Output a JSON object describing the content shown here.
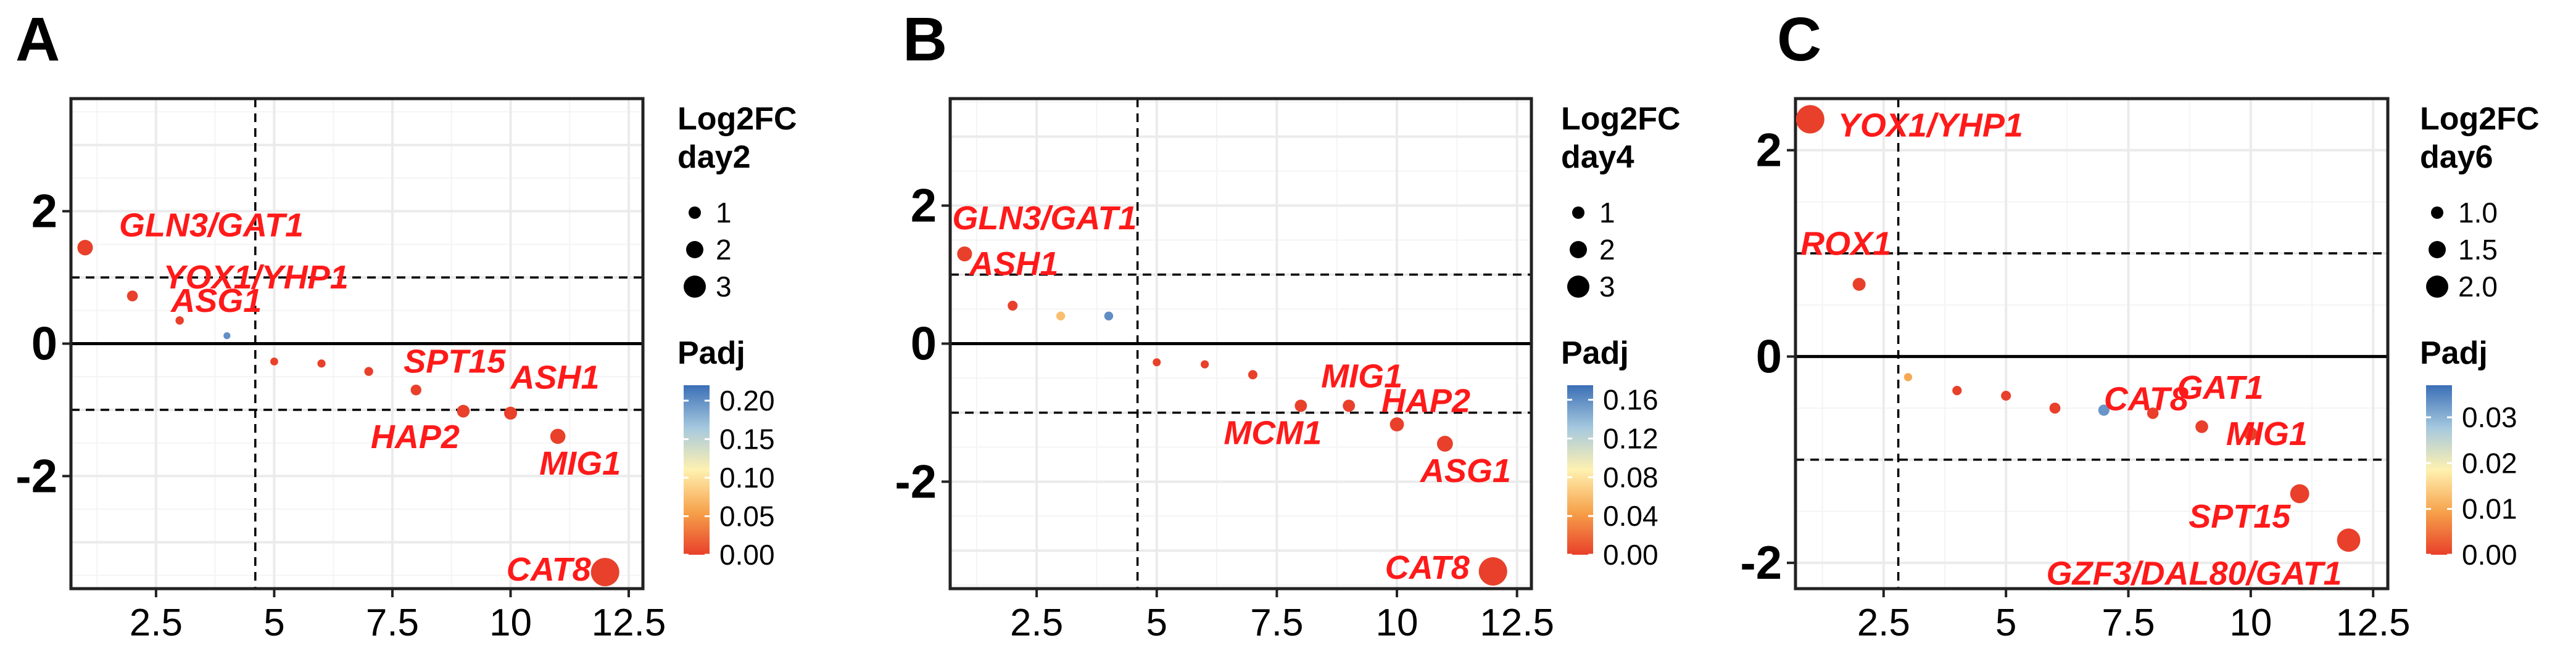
{
  "chart_data": [
    {
      "type": "scatter",
      "panel": "A",
      "xlim": [
        0.7,
        12.8
      ],
      "ylim": [
        -3.7,
        3.7
      ],
      "xticks": [
        "2.5",
        "5",
        "7.5",
        "10",
        "12.5"
      ],
      "yticks": [
        "2",
        "0",
        "-2"
      ],
      "cutoffs": {
        "vline_x": 4.6,
        "hline_y": [
          1.0,
          -1.0
        ]
      },
      "size_legend": {
        "title": [
          "Log2FC",
          "day2"
        ],
        "sizes": [
          "1",
          "2",
          "3"
        ]
      },
      "color_legend": {
        "title": "Padj",
        "ticks": [
          "0.20",
          "0.15",
          "0.10",
          "0.05",
          "0.00"
        ],
        "range": [
          0,
          0.22
        ]
      },
      "points": [
        {
          "x": 1,
          "y": 1.45,
          "padj": 0.0,
          "label": "GLN3/GAT1"
        },
        {
          "x": 2,
          "y": 0.72,
          "padj": 0.0,
          "label": "YOX1/YHP1"
        },
        {
          "x": 3,
          "y": 0.35,
          "padj": 0.0,
          "label": "ASG1"
        },
        {
          "x": 4,
          "y": 0.12,
          "padj": 0.2,
          "label": ""
        },
        {
          "x": 5,
          "y": -0.27,
          "padj": 0.0,
          "label": ""
        },
        {
          "x": 6,
          "y": -0.3,
          "padj": 0.0,
          "label": ""
        },
        {
          "x": 7,
          "y": -0.42,
          "padj": 0.0,
          "label": ""
        },
        {
          "x": 8,
          "y": -0.7,
          "padj": 0.0,
          "label": "SPT15"
        },
        {
          "x": 9,
          "y": -1.02,
          "padj": 0.0,
          "label": "HAP2"
        },
        {
          "x": 10,
          "y": -1.05,
          "padj": 0.0,
          "label": "ASH1"
        },
        {
          "x": 11,
          "y": -1.4,
          "padj": 0.0,
          "label": "MIG1"
        },
        {
          "x": 12,
          "y": -3.45,
          "padj": 0.0,
          "label": "CAT8"
        }
      ]
    },
    {
      "type": "scatter",
      "panel": "B",
      "xlim": [
        0.7,
        12.8
      ],
      "ylim": [
        -3.55,
        3.55
      ],
      "xticks": [
        "2.5",
        "5",
        "7.5",
        "10",
        "12.5"
      ],
      "yticks": [
        "2",
        "0",
        "-2"
      ],
      "cutoffs": {
        "vline_x": 4.6,
        "hline_y": [
          1.0,
          -1.0
        ]
      },
      "size_legend": {
        "title": [
          "Log2FC",
          "day4"
        ],
        "sizes": [
          "1",
          "2",
          "3"
        ]
      },
      "color_legend": {
        "title": "Padj",
        "ticks": [
          "0.16",
          "0.12",
          "0.08",
          "0.04",
          "0.00"
        ],
        "range": [
          0,
          0.175
        ]
      },
      "points": [
        {
          "x": 1,
          "y": 1.3,
          "padj": 0.0,
          "label": "GLN3/GAT1"
        },
        {
          "x": 2,
          "y": 0.55,
          "padj": 0.0,
          "label": "ASH1"
        },
        {
          "x": 3,
          "y": 0.4,
          "padj": 0.06,
          "label": ""
        },
        {
          "x": 4,
          "y": 0.4,
          "padj": 0.16,
          "label": ""
        },
        {
          "x": 5,
          "y": -0.27,
          "padj": 0.0,
          "label": ""
        },
        {
          "x": 6,
          "y": -0.3,
          "padj": 0.0,
          "label": ""
        },
        {
          "x": 7,
          "y": -0.45,
          "padj": 0.0,
          "label": ""
        },
        {
          "x": 8,
          "y": -0.9,
          "padj": 0.0,
          "label": "MCM1"
        },
        {
          "x": 9,
          "y": -0.9,
          "padj": 0.0,
          "label": "MIG1"
        },
        {
          "x": 10,
          "y": -1.17,
          "padj": 0.0,
          "label": "HAP2"
        },
        {
          "x": 11,
          "y": -1.45,
          "padj": 0.0,
          "label": "ASG1"
        },
        {
          "x": 12,
          "y": -3.3,
          "padj": 0.0,
          "label": "CAT8"
        }
      ]
    },
    {
      "type": "scatter",
      "panel": "C",
      "xlim": [
        0.7,
        12.8
      ],
      "ylim": [
        -2.25,
        2.5
      ],
      "xticks": [
        "2.5",
        "5",
        "7.5",
        "10",
        "12.5"
      ],
      "yticks": [
        "2",
        "0",
        "-2"
      ],
      "cutoffs": {
        "vline_x": 2.8,
        "hline_y": [
          1.0,
          -1.0
        ]
      },
      "size_legend": {
        "title": [
          "Log2FC",
          "day6"
        ],
        "sizes": [
          "1.0",
          "1.5",
          "2.0"
        ]
      },
      "color_legend": {
        "title": "Padj",
        "ticks": [
          "0.03",
          "0.02",
          "0.01",
          "0.00"
        ],
        "range": [
          0,
          0.037
        ]
      },
      "points": [
        {
          "x": 1,
          "y": 2.3,
          "padj": 0.0,
          "label": "YOX1/YHP1"
        },
        {
          "x": 2,
          "y": 0.7,
          "padj": 0.0,
          "label": "ROX1"
        },
        {
          "x": 3,
          "y": -0.2,
          "padj": 0.01,
          "label": ""
        },
        {
          "x": 4,
          "y": -0.33,
          "padj": 0.0,
          "label": ""
        },
        {
          "x": 5,
          "y": -0.38,
          "padj": 0.0,
          "label": ""
        },
        {
          "x": 6,
          "y": -0.5,
          "padj": 0.0,
          "label": ""
        },
        {
          "x": 7,
          "y": -0.52,
          "padj": 0.033,
          "label": "CAT8"
        },
        {
          "x": 8,
          "y": -0.55,
          "padj": 0.0,
          "label": ""
        },
        {
          "x": 9,
          "y": -0.68,
          "padj": 0.0,
          "label": "GAT1"
        },
        {
          "x": 10,
          "y": -0.75,
          "padj": 0.0,
          "label": "MIG1"
        },
        {
          "x": 11,
          "y": -1.33,
          "padj": 0.0,
          "label": "SPT15"
        },
        {
          "x": 12,
          "y": -1.78,
          "padj": 0.0,
          "label": "GZF3/DAL80/GAT1"
        }
      ]
    }
  ]
}
